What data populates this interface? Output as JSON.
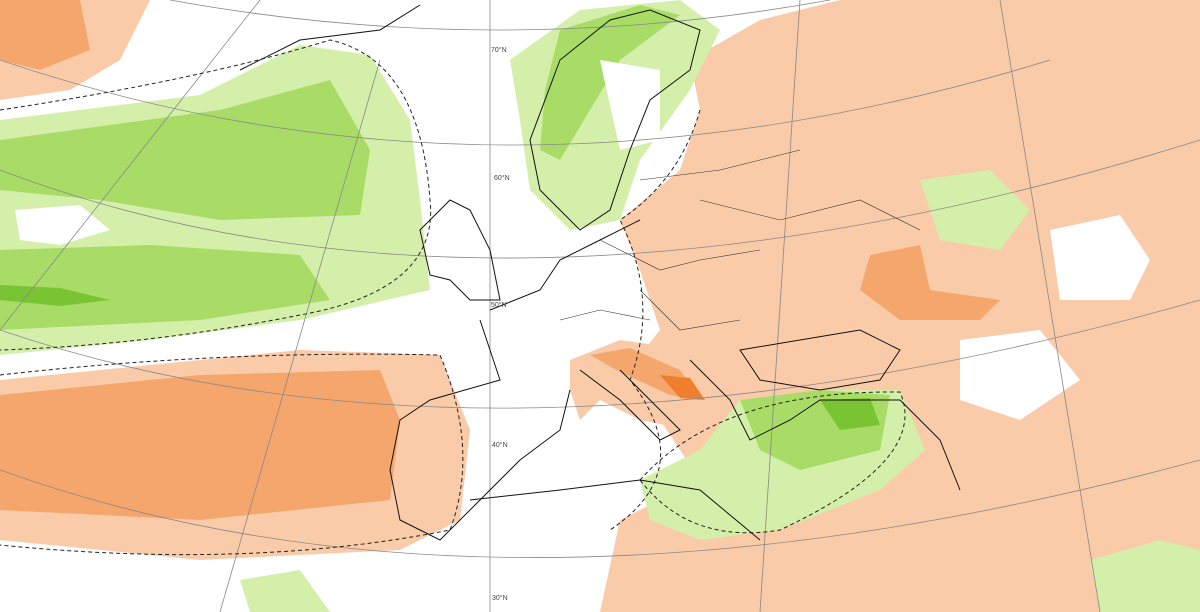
{
  "graticule_labels": [
    "70°N",
    "60°N",
    "50°N",
    "40°N",
    "30°N"
  ]
}
